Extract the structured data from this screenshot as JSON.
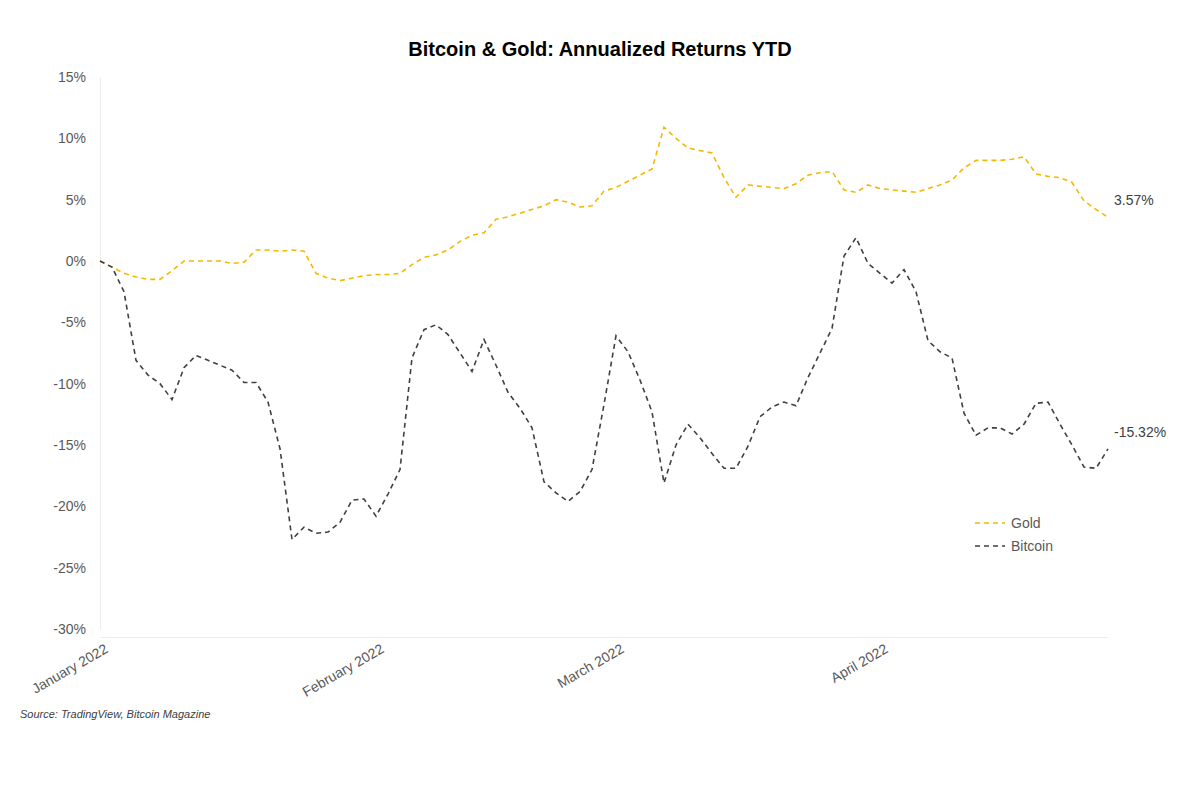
{
  "chart_data": {
    "type": "line",
    "title": "Bitcoin & Gold: Annualized Returns YTD",
    "source": "Source: TradingView, Bitcoin Magazine",
    "categories": [
      "January 2022",
      null,
      null,
      null,
      null,
      null,
      null,
      null,
      null,
      null,
      null,
      null,
      null,
      null,
      null,
      null,
      null,
      null,
      null,
      null,
      null,
      null,
      null,
      "February 2022",
      null,
      null,
      null,
      null,
      null,
      null,
      null,
      null,
      null,
      null,
      null,
      null,
      null,
      null,
      null,
      null,
      null,
      null,
      null,
      "March 2022",
      null,
      null,
      null,
      null,
      null,
      null,
      null,
      null,
      null,
      null,
      null,
      null,
      null,
      null,
      null,
      null,
      null,
      null,
      null,
      null,
      null,
      "April 2022",
      null,
      null,
      null,
      null,
      null,
      null,
      null,
      null,
      null,
      null,
      null,
      null,
      null,
      null,
      null,
      null,
      null,
      null,
      null
    ],
    "series": [
      {
        "name": "Gold",
        "color": "#f5b800",
        "line_style": "dashed",
        "values": [
          0,
          -0.5,
          -1.0,
          -1.3,
          -1.5,
          -1.5,
          -0.8,
          0,
          0,
          0,
          0,
          -0.2,
          -0.1,
          0.9,
          0.9,
          0.8,
          0.9,
          0.8,
          -1.0,
          -1.4,
          -1.6,
          -1.4,
          -1.2,
          -1.1,
          -1.1,
          -1.0,
          -0.3,
          0.3,
          0.5,
          0.9,
          1.6,
          2.1,
          2.3,
          3.4,
          3.6,
          3.9,
          4.2,
          4.5,
          5.0,
          4.8,
          4.4,
          4.5,
          5.7,
          6.0,
          6.5,
          7.0,
          7.5,
          10.9,
          10.0,
          9.2,
          9.0,
          8.8,
          6.8,
          5.2,
          6.2,
          6.1,
          6.0,
          5.9,
          6.3,
          7.0,
          7.2,
          7.3,
          5.8,
          5.6,
          6.2,
          5.9,
          5.8,
          5.7,
          5.6,
          5.9,
          6.2,
          6.6,
          7.6,
          8.2,
          8.2,
          8.2,
          8.3,
          8.5,
          7.1,
          6.9,
          6.8,
          6.4,
          4.9,
          4.2,
          3.57
        ]
      },
      {
        "name": "Bitcoin",
        "color": "#404040",
        "line_style": "dashed",
        "values": [
          0,
          -0.5,
          -2.5,
          -8.1,
          -9.3,
          -10,
          -11.3,
          -8.7,
          -7.7,
          -8.1,
          -8.5,
          -8.9,
          -9.9,
          -9.9,
          -11.5,
          -15.3,
          -22.7,
          -21.7,
          -22.2,
          -22.1,
          -21.3,
          -19.5,
          -19.4,
          -20.8,
          -19,
          -17,
          -7.9,
          -5.6,
          -5.2,
          -6.0,
          -7.5,
          -9.0,
          -6.4,
          -8.5,
          -10.7,
          -12.0,
          -13.6,
          -18.0,
          -18.9,
          -19.6,
          -18.8,
          -17.0,
          -11.7,
          -6.1,
          -7.4,
          -9.7,
          -12.3,
          -18.1,
          -15.0,
          -13.3,
          -14.4,
          -15.7,
          -16.9,
          -16.9,
          -15.1,
          -12.7,
          -11.9,
          -11.5,
          -11.8,
          -9.5,
          -7.5,
          -5.5,
          0.4,
          1.9,
          -0.2,
          -1.0,
          -1.8,
          -0.7,
          -2.5,
          -6.5,
          -7.4,
          -7.9,
          -12.4,
          -14.2,
          -13.6,
          -13.6,
          -14.1,
          -13.3,
          -11.6,
          -11.5,
          -13.3,
          -15.0,
          -16.8,
          -16.9,
          -15.32
        ]
      }
    ],
    "annotations": [
      "3.57%",
      "-15.32%"
    ],
    "ylim": [
      -30,
      15
    ],
    "yticks": [
      {
        "value": -30,
        "label": "-30%"
      },
      {
        "value": -25,
        "label": "-25%"
      },
      {
        "value": -20,
        "label": "-20%"
      },
      {
        "value": -15,
        "label": "-15%"
      },
      {
        "value": -10,
        "label": "-10%"
      },
      {
        "value": -5,
        "label": "-5%"
      },
      {
        "value": 0,
        "label": "0%"
      },
      {
        "value": 5,
        "label": "5%"
      },
      {
        "value": 10,
        "label": "10%"
      },
      {
        "value": 15,
        "label": "15%"
      }
    ],
    "grid": false,
    "legend": "lower right"
  }
}
